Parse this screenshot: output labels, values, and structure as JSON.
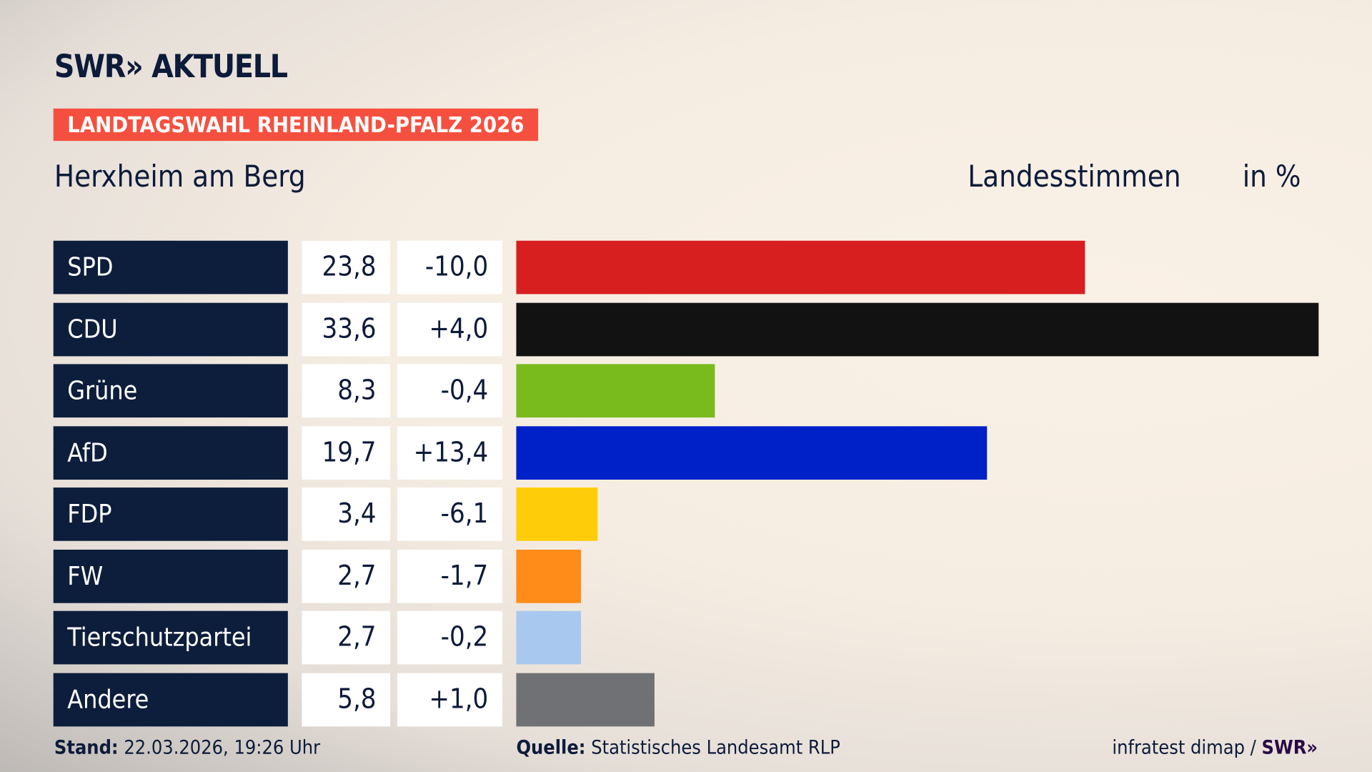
{
  "header": {
    "logo": "SWR» AKTUELL",
    "banner": "LANDTAGSWAHL RHEINLAND-PFALZ 2026",
    "place": "Herxheim am Berg",
    "vote_type": "Landesstimmen",
    "unit": "in %",
    "banner_color": "#f5503f"
  },
  "chart_data": {
    "type": "bar",
    "orientation": "horizontal",
    "xlim": [
      0,
      33.6
    ],
    "categories": [
      "SPD",
      "CDU",
      "Grüne",
      "AfD",
      "FDP",
      "FW",
      "Tierschutzpartei",
      "Andere"
    ],
    "values": [
      23.8,
      33.6,
      8.3,
      19.7,
      3.4,
      2.7,
      2.7,
      5.8
    ],
    "value_labels": [
      "23,8",
      "33,6",
      "8,3",
      "19,7",
      "3,4",
      "2,7",
      "2,7",
      "5,8"
    ],
    "change_labels": [
      "-10,0",
      "+4,0",
      "-0,4",
      "+13,4",
      "-6,1",
      "-1,7",
      "-0,2",
      "+1,0"
    ],
    "colors": [
      "#d71f20",
      "#121212",
      "#79bb1d",
      "#0020c8",
      "#ffcc0a",
      "#ff8c19",
      "#a9c8ef",
      "#707174"
    ]
  },
  "footer": {
    "stand_label": "Stand:",
    "stand": "22.03.2026, 19:26 Uhr",
    "source_label": "Quelle:",
    "source": "Statistisches Landesamt RLP",
    "credit": "infratest dimap /",
    "credit_logo": "SWR»"
  }
}
